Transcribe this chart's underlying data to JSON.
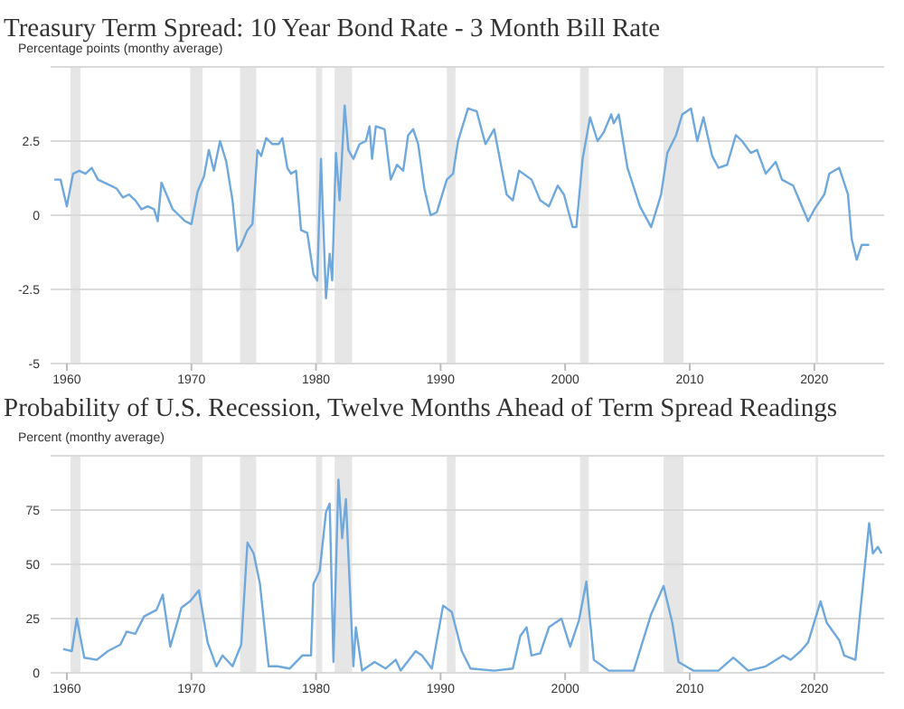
{
  "chart_data": [
    {
      "type": "line",
      "title": "Treasury Term Spread: 10 Year Bond Rate - 3 Month Bill Rate",
      "ylabel": "Percentage points (monthy average)",
      "xlim": [
        1958.7,
        2025.6
      ],
      "xticks": [
        {
          "value": 1960,
          "label": "1960"
        },
        {
          "value": 1970,
          "label": "1970"
        },
        {
          "value": 1980,
          "label": "1980"
        },
        {
          "value": 1990,
          "label": "1990"
        },
        {
          "value": 2000,
          "label": "2000"
        },
        {
          "value": 2010,
          "label": "2010"
        },
        {
          "value": 2020,
          "label": "2020"
        }
      ],
      "ylim": [
        -5,
        5
      ],
      "yticks": [
        -5,
        -2.5,
        0,
        2.5,
        {
          "value": 5,
          "label": null
        }
      ],
      "grid": "y",
      "bands": [
        {
          "axis": "x",
          "from": 1960.3,
          "to": 1961.1,
          "color": "#e6e6e6"
        },
        {
          "axis": "x",
          "from": 1969.9,
          "to": 1970.9,
          "color": "#e6e6e6"
        },
        {
          "axis": "x",
          "from": 1973.9,
          "to": 1975.2,
          "color": "#e6e6e6"
        },
        {
          "axis": "x",
          "from": 1980.0,
          "to": 1980.5,
          "color": "#e6e6e6"
        },
        {
          "axis": "x",
          "from": 1981.5,
          "to": 1982.9,
          "color": "#e6e6e6"
        },
        {
          "axis": "x",
          "from": 1990.5,
          "to": 1991.2,
          "color": "#e6e6e6"
        },
        {
          "axis": "x",
          "from": 2001.2,
          "to": 2001.9,
          "color": "#e6e6e6"
        },
        {
          "axis": "x",
          "from": 2007.9,
          "to": 2009.5,
          "color": "#e6e6e6"
        },
        {
          "axis": "x",
          "from": 2020.1,
          "to": 2020.3,
          "color": "#e6e6e6"
        }
      ],
      "series": [
        {
          "color": "#6fa8dc",
          "x": [
            1959,
            1959.5,
            1960,
            1960.5,
            1961,
            1961.5,
            1962,
            1962.5,
            1963,
            1963.5,
            1964,
            1964.5,
            1965,
            1965.5,
            1966,
            1966.5,
            1967,
            1967.3,
            1967.6,
            1968,
            1968.5,
            1969,
            1969.5,
            1970,
            1970.5,
            1971,
            1971.4,
            1971.8,
            1972.3,
            1972.8,
            1973.3,
            1973.7,
            1974,
            1974.5,
            1974.9,
            1975.3,
            1975.6,
            1976,
            1976.5,
            1977,
            1977.3,
            1977.7,
            1978,
            1978.4,
            1978.8,
            1979.3,
            1979.8,
            1980.1,
            1980.4,
            1980.8,
            1981.1,
            1981.3,
            1981.6,
            1981.9,
            1982.3,
            1982.6,
            1983,
            1983.5,
            1984,
            1984.3,
            1984.5,
            1984.8,
            1985.5,
            1986,
            1986.5,
            1987,
            1987.4,
            1987.8,
            1988.2,
            1988.7,
            1989.2,
            1989.7,
            1990.5,
            1991,
            1991.4,
            1992.2,
            1992.9,
            1993.6,
            1994.3,
            1995.3,
            1995.8,
            1996.3,
            1997.3,
            1998,
            1998.7,
            1999.4,
            1999.9,
            2000.6,
            2000.9,
            2001.4,
            2002,
            2002.6,
            2003.1,
            2003.7,
            2003.9,
            2004.3,
            2005,
            2006,
            2006.9,
            2007.7,
            2008.2,
            2008.9,
            2009.4,
            2010.1,
            2010.6,
            2011.1,
            2011.8,
            2012.3,
            2013,
            2013.7,
            2014.2,
            2014.9,
            2015.4,
            2016.1,
            2016.9,
            2017.4,
            2018.3,
            2019.5,
            2020,
            2020.8,
            2021.2,
            2022,
            2022.7,
            2023,
            2023.4,
            2023.8,
            2024.4
          ],
          "values": [
            1.2,
            1.2,
            0.3,
            1.4,
            1.5,
            1.4,
            1.6,
            1.2,
            1.1,
            1.0,
            0.9,
            0.6,
            0.7,
            0.5,
            0.2,
            0.3,
            0.2,
            -0.2,
            1.1,
            0.7,
            0.2,
            0.0,
            -0.2,
            -0.3,
            0.8,
            1.3,
            2.2,
            1.5,
            2.5,
            1.8,
            0.5,
            -1.2,
            -1.0,
            -0.5,
            -0.3,
            2.2,
            2.0,
            2.6,
            2.4,
            2.4,
            2.6,
            1.6,
            1.4,
            1.5,
            -0.5,
            -0.6,
            -2.0,
            -2.2,
            1.9,
            -2.8,
            -1.3,
            -2.2,
            2.1,
            0.5,
            3.7,
            2.2,
            1.9,
            2.4,
            2.5,
            3.0,
            1.9,
            3.0,
            2.9,
            1.2,
            1.7,
            1.5,
            2.7,
            2.9,
            2.4,
            0.9,
            0.0,
            0.1,
            1.2,
            1.4,
            2.5,
            3.6,
            3.5,
            2.4,
            2.9,
            0.7,
            0.5,
            1.5,
            1.2,
            0.5,
            0.3,
            1.0,
            0.7,
            -0.4,
            -0.4,
            1.9,
            3.3,
            2.5,
            2.8,
            3.4,
            3.1,
            3.4,
            1.6,
            0.3,
            -0.4,
            0.7,
            2.1,
            2.7,
            3.4,
            3.6,
            2.5,
            3.3,
            2.0,
            1.6,
            1.7,
            2.7,
            2.5,
            2.1,
            2.2,
            1.4,
            1.8,
            1.2,
            1.0,
            -0.2,
            0.2,
            0.7,
            1.4,
            1.6,
            0.7,
            -0.8,
            -1.5,
            -1.0,
            -1.0
          ]
        }
      ]
    },
    {
      "type": "line",
      "title": "Probability of U.S. Recession, Twelve Months Ahead of Term Spread Readings",
      "ylabel": "Percent (monthy average)",
      "xlim": [
        1958.7,
        2025.6
      ],
      "xticks": [
        {
          "value": 1960,
          "label": "1960"
        },
        {
          "value": 1970,
          "label": "1970"
        },
        {
          "value": 1980,
          "label": "1980"
        },
        {
          "value": 1990,
          "label": "1990"
        },
        {
          "value": 2000,
          "label": "2000"
        },
        {
          "value": 2010,
          "label": "2010"
        },
        {
          "value": 2020,
          "label": "2020"
        }
      ],
      "ylim": [
        0,
        100
      ],
      "yticks": [
        0,
        25,
        50,
        75,
        {
          "value": 100,
          "label": null
        }
      ],
      "grid": "y",
      "bands": [
        {
          "axis": "x",
          "from": 1960.3,
          "to": 1961.1,
          "color": "#e6e6e6"
        },
        {
          "axis": "x",
          "from": 1969.9,
          "to": 1970.9,
          "color": "#e6e6e6"
        },
        {
          "axis": "x",
          "from": 1973.9,
          "to": 1975.2,
          "color": "#e6e6e6"
        },
        {
          "axis": "x",
          "from": 1980.0,
          "to": 1980.5,
          "color": "#e6e6e6"
        },
        {
          "axis": "x",
          "from": 1981.5,
          "to": 1982.9,
          "color": "#e6e6e6"
        },
        {
          "axis": "x",
          "from": 1990.5,
          "to": 1991.2,
          "color": "#e6e6e6"
        },
        {
          "axis": "x",
          "from": 2001.2,
          "to": 2001.9,
          "color": "#e6e6e6"
        },
        {
          "axis": "x",
          "from": 2007.9,
          "to": 2009.5,
          "color": "#e6e6e6"
        },
        {
          "axis": "x",
          "from": 2020.1,
          "to": 2020.3,
          "color": "#e6e6e6"
        }
      ],
      "series": [
        {
          "color": "#6fa8dc",
          "x": [
            1959.7,
            1960.4,
            1960.8,
            1961.4,
            1962.4,
            1963.3,
            1964.3,
            1964.8,
            1965.5,
            1966.2,
            1967.2,
            1967.7,
            1968.3,
            1969.2,
            1969.9,
            1970.6,
            1971.3,
            1972,
            1972.5,
            1973.3,
            1974,
            1974.5,
            1975,
            1975.5,
            1976.2,
            1976.9,
            1977.9,
            1978.9,
            1979.6,
            1979.8,
            1980.3,
            1980.8,
            1981.1,
            1981.4,
            1981.8,
            1982.1,
            1982.4,
            1983,
            1983.2,
            1983.7,
            1984.7,
            1985.6,
            1986.4,
            1986.8,
            1988,
            1988.5,
            1989.3,
            1990.2,
            1990.9,
            1991.7,
            1992.4,
            1994.3,
            1995.8,
            1996.4,
            1996.9,
            1997.3,
            1998,
            1998.7,
            1999.7,
            2000.4,
            2001.1,
            2001.7,
            2002.3,
            2003.5,
            2005.5,
            2006.9,
            2007.9,
            2008.6,
            2009.1,
            2010.3,
            2012.3,
            2013.5,
            2014.7,
            2016.1,
            2017.5,
            2018.1,
            2018.9,
            2019.5,
            2020.5,
            2021,
            2022,
            2022.4,
            2023.3,
            2024.4,
            2024.7,
            2025.1,
            2025.4
          ],
          "values": [
            11,
            10,
            25,
            7,
            6,
            10,
            13,
            19,
            18,
            26,
            29,
            36,
            12,
            30,
            33,
            38,
            14,
            3,
            8,
            3,
            13,
            60,
            55,
            41,
            3,
            3,
            2,
            8,
            8,
            41,
            47,
            74,
            78,
            5,
            89,
            62,
            80,
            3,
            21,
            1,
            5,
            2,
            6,
            1,
            10,
            8,
            2,
            31,
            28,
            10,
            2,
            1,
            2,
            17,
            21,
            8,
            9,
            21,
            25,
            12,
            24,
            42,
            6,
            1,
            1,
            27,
            40,
            23,
            5,
            1,
            1,
            7,
            1,
            3,
            8,
            6,
            10,
            14,
            33,
            23,
            15,
            8,
            6,
            69,
            55,
            58,
            55
          ]
        }
      ]
    }
  ]
}
